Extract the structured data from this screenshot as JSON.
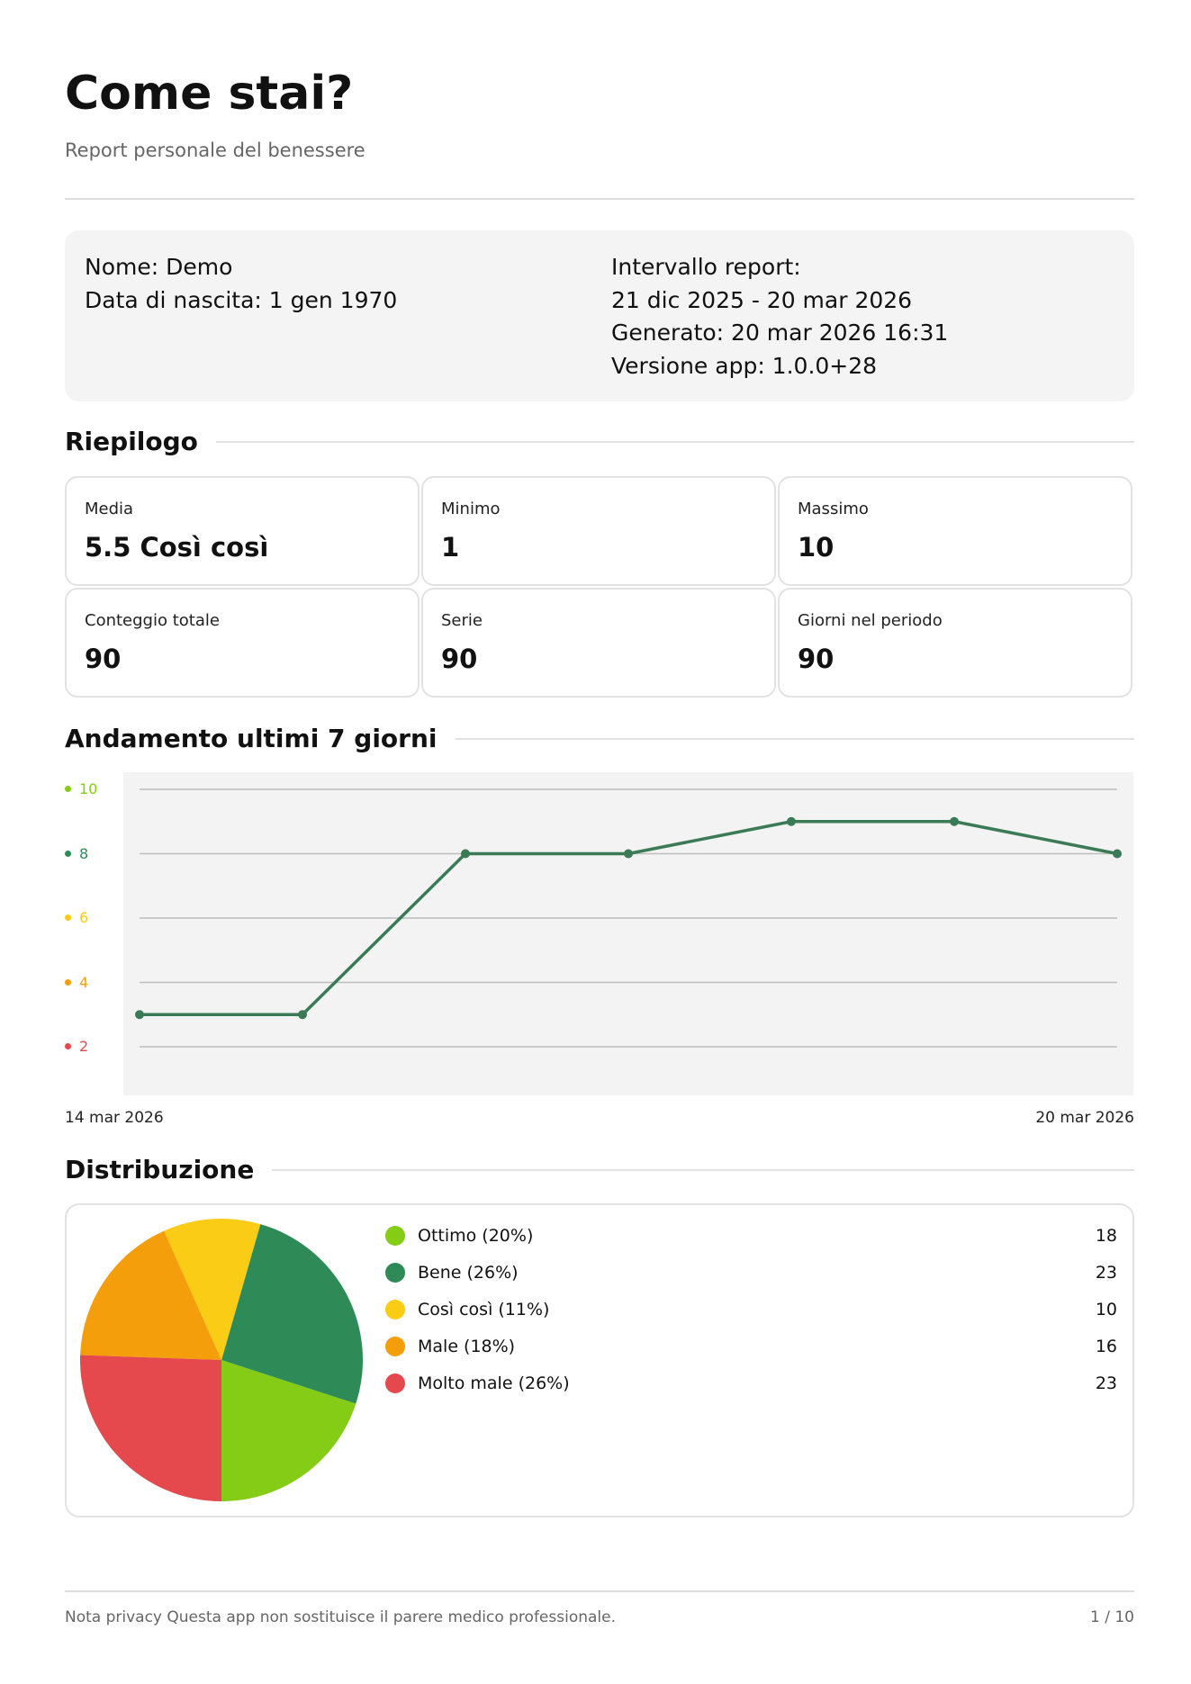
{
  "header": {
    "title": "Come stai?",
    "subtitle": "Report personale del benessere"
  },
  "info": {
    "name": "Nome: Demo",
    "birth": "Data di nascita: 1 gen 1970",
    "range_label": "Intervallo report:",
    "range": "21 dic 2025 - 20 mar 2026",
    "generated": "Generato: 20 mar 2026 16:31",
    "version": "Versione app: 1.0.0+28"
  },
  "summary": {
    "title": "Riepilogo",
    "cards": [
      {
        "label": "Media",
        "value": "5.5  Così così"
      },
      {
        "label": "Minimo",
        "value": "1"
      },
      {
        "label": "Massimo",
        "value": "10"
      },
      {
        "label": "Conteggio totale",
        "value": "90"
      },
      {
        "label": "Serie",
        "value": "90"
      },
      {
        "label": "Giorni nel periodo",
        "value": "90"
      }
    ]
  },
  "trend": {
    "title": "Andamento ultimi 7 giorni"
  },
  "distribution": {
    "title": "Distribuzione"
  },
  "chart_data": [
    {
      "type": "line",
      "title": "Andamento ultimi 7 giorni",
      "x_start_label": "14 mar 2026",
      "x_end_label": "20 mar 2026",
      "x": [
        "14 mar 2026",
        "15 mar 2026",
        "16 mar 2026",
        "17 mar 2026",
        "18 mar 2026",
        "19 mar 2026",
        "20 mar 2026"
      ],
      "values": [
        3,
        3,
        8,
        8,
        9,
        9,
        8
      ],
      "ylim": [
        0,
        10.5
      ],
      "yticks": [
        {
          "label": "10",
          "value": 10,
          "color": "#84cc16"
        },
        {
          "label": "8",
          "value": 8,
          "color": "#2e8b57"
        },
        {
          "label": "6",
          "value": 6,
          "color": "#facc15"
        },
        {
          "label": "4",
          "value": 4,
          "color": "#f59e0b"
        },
        {
          "label": "2",
          "value": 2,
          "color": "#e5484d"
        }
      ],
      "grid": true,
      "line_color": "#3a7a55"
    },
    {
      "type": "pie",
      "title": "Distribuzione",
      "slices": [
        {
          "label": "Ottimo (20%)",
          "value": 18,
          "color": "#84cc16"
        },
        {
          "label": "Bene (26%)",
          "value": 23,
          "color": "#2e8b57"
        },
        {
          "label": "Così così (11%)",
          "value": 10,
          "color": "#facc15"
        },
        {
          "label": "Male (18%)",
          "value": 16,
          "color": "#f59e0b"
        },
        {
          "label": "Molto male (26%)",
          "value": 23,
          "color": "#e5484d"
        }
      ],
      "legend": "right"
    }
  ],
  "footer": {
    "note": "Nota privacy Questa app non sostituisce il parere medico professionale.",
    "page": "1 / 10"
  }
}
